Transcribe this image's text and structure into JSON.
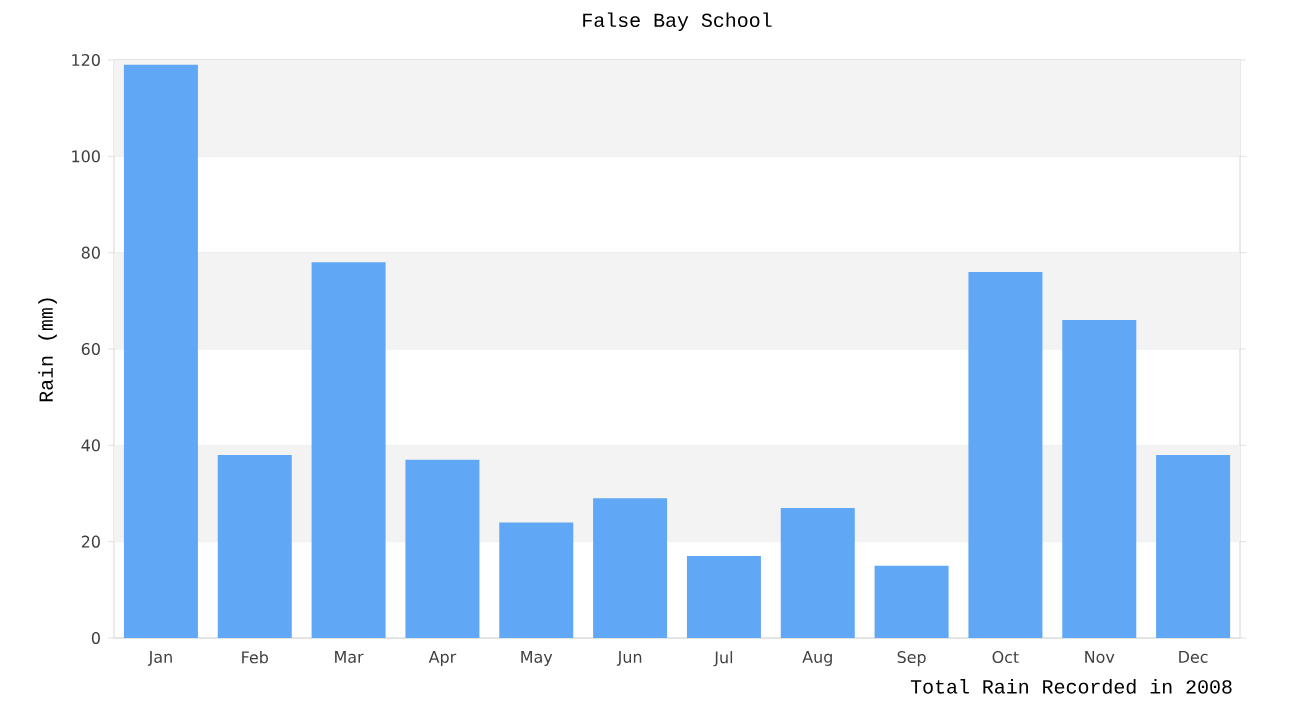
{
  "chart_data": {
    "type": "bar",
    "title": "False Bay School",
    "xlabel": "Total Rain Recorded in 2008",
    "ylabel": "Rain (mm)",
    "categories": [
      "Jan",
      "Feb",
      "Mar",
      "Apr",
      "May",
      "Jun",
      "Jul",
      "Aug",
      "Sep",
      "Oct",
      "Nov",
      "Dec"
    ],
    "values": [
      119,
      38,
      78,
      37,
      24,
      29,
      17,
      27,
      15,
      76,
      66,
      38
    ],
    "color": "#60a8f6",
    "ylim": [
      0,
      120
    ],
    "yticks": [
      0,
      20,
      40,
      60,
      80,
      100,
      120
    ],
    "grid": "y",
    "bands": [
      {
        "axis": "y",
        "from": 20,
        "to": 40,
        "color": "#f3f3f3"
      },
      {
        "axis": "y",
        "from": 60,
        "to": 80,
        "color": "#f3f3f3"
      },
      {
        "axis": "y",
        "from": 100,
        "to": 120,
        "color": "#f3f3f3"
      }
    ]
  }
}
